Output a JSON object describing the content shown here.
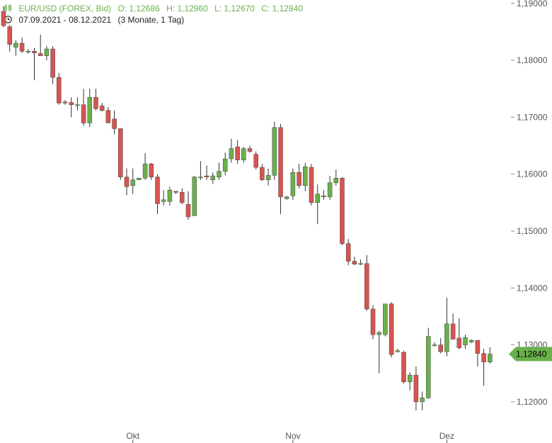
{
  "header": {
    "instrument": "EUR/USD (FOREX, Bid)",
    "open": "O: 1,12686",
    "high": "H: 1,12960",
    "low": "L: 1,12670",
    "close": "C: 1,12840",
    "daterange": "07.09.2021 - 08.12.2021",
    "period": "(3 Monate, 1 Tag)"
  },
  "colors": {
    "up": "#6ab04c",
    "down": "#d9534f",
    "wick": "#333333",
    "last": "#6ab04c"
  },
  "last_price_label": "1,12840",
  "chart_data": {
    "type": "candlestick",
    "title": "EUR/USD (FOREX, Bid)",
    "ylim": [
      1.1165,
      1.1906
    ],
    "yticks": [
      1.12,
      1.13,
      1.14,
      1.15,
      1.16,
      1.17,
      1.18,
      1.19
    ],
    "ytick_labels": [
      "1,12000",
      "1,13000",
      "1,14000",
      "1,15000",
      "1,16000",
      "1,17000",
      "1,18000",
      "1,19000"
    ],
    "xticks": [
      {
        "label": "Okt",
        "index": 21
      },
      {
        "label": "Nov",
        "index": 47
      },
      {
        "label": "Dez",
        "index": 72
      }
    ],
    "last": 1.1284,
    "candles": [
      [
        1.1886,
        1.1895,
        1.1858,
        1.1861
      ],
      [
        1.1859,
        1.1862,
        1.1815,
        1.1828
      ],
      [
        1.1823,
        1.1835,
        1.1808,
        1.183
      ],
      [
        1.183,
        1.184,
        1.1813,
        1.1816
      ],
      [
        1.1816,
        1.182,
        1.1812,
        1.1816
      ],
      [
        1.1816,
        1.1822,
        1.1765,
        1.1813
      ],
      [
        1.1812,
        1.1845,
        1.1808,
        1.1808
      ],
      [
        1.1808,
        1.1825,
        1.18,
        1.182
      ],
      [
        1.182,
        1.1825,
        1.1758,
        1.177
      ],
      [
        1.177,
        1.1778,
        1.1722,
        1.1725
      ],
      [
        1.1727,
        1.173,
        1.1722,
        1.1725
      ],
      [
        1.1726,
        1.1735,
        1.17,
        1.1722
      ],
      [
        1.1722,
        1.1735,
        1.1712,
        1.1722
      ],
      [
        1.1722,
        1.175,
        1.1685,
        1.169
      ],
      [
        1.169,
        1.175,
        1.1683,
        1.1735
      ],
      [
        1.1735,
        1.175,
        1.1712,
        1.1715
      ],
      [
        1.172,
        1.1725,
        1.171,
        1.1712
      ],
      [
        1.1712,
        1.1718,
        1.169,
        1.169
      ],
      [
        1.1697,
        1.1712,
        1.167,
        1.168
      ],
      [
        1.168,
        1.168,
        1.159,
        1.1595
      ],
      [
        1.1595,
        1.161,
        1.1563,
        1.1578
      ],
      [
        1.158,
        1.161,
        1.1565,
        1.159
      ],
      [
        1.159,
        1.1593,
        1.159,
        1.1593
      ],
      [
        1.1593,
        1.1637,
        1.159,
        1.1618
      ],
      [
        1.1618,
        1.162,
        1.159,
        1.1595
      ],
      [
        1.1595,
        1.16,
        1.153,
        1.1548
      ],
      [
        1.1552,
        1.1572,
        1.1545,
        1.1555
      ],
      [
        1.1552,
        1.1578,
        1.1545,
        1.1572
      ],
      [
        1.157,
        1.157,
        1.1565,
        1.1568
      ],
      [
        1.1568,
        1.1575,
        1.1547,
        1.155
      ],
      [
        1.1547,
        1.157,
        1.152,
        1.1525
      ],
      [
        1.1527,
        1.1597,
        1.1527,
        1.1595
      ],
      [
        1.1595,
        1.1623,
        1.159,
        1.1595
      ],
      [
        1.1597,
        1.1615,
        1.159,
        1.1595
      ],
      [
        1.159,
        1.1603,
        1.1583,
        1.1597
      ],
      [
        1.1595,
        1.162,
        1.159,
        1.1605
      ],
      [
        1.1605,
        1.1638,
        1.1598,
        1.1627
      ],
      [
        1.1627,
        1.1662,
        1.162,
        1.1645
      ],
      [
        1.1648,
        1.166,
        1.1618,
        1.1625
      ],
      [
        1.1625,
        1.1648,
        1.162,
        1.1645
      ],
      [
        1.1645,
        1.165,
        1.1638,
        1.164
      ],
      [
        1.1635,
        1.164,
        1.1608,
        1.1612
      ],
      [
        1.1612,
        1.1618,
        1.1588,
        1.159
      ],
      [
        1.159,
        1.161,
        1.158,
        1.1598
      ],
      [
        1.1598,
        1.1692,
        1.159,
        1.1682
      ],
      [
        1.1682,
        1.1688,
        1.153,
        1.156
      ],
      [
        1.1557,
        1.1562,
        1.1555,
        1.156
      ],
      [
        1.1562,
        1.161,
        1.1555,
        1.1603
      ],
      [
        1.1603,
        1.1618,
        1.1575,
        1.158
      ],
      [
        1.158,
        1.162,
        1.157,
        1.1613
      ],
      [
        1.1612,
        1.1618,
        1.1545,
        1.155
      ],
      [
        1.155,
        1.1582,
        1.1512,
        1.1565
      ],
      [
        1.156,
        1.1572,
        1.1555,
        1.1562
      ],
      [
        1.156,
        1.1597,
        1.1555,
        1.1585
      ],
      [
        1.1585,
        1.1608,
        1.158,
        1.1593
      ],
      [
        1.1593,
        1.1595,
        1.1475,
        1.1478
      ],
      [
        1.1478,
        1.1486,
        1.144,
        1.1447
      ],
      [
        1.1447,
        1.1455,
        1.144,
        1.1442
      ],
      [
        1.1442,
        1.145,
        1.144,
        1.1443
      ],
      [
        1.1443,
        1.1458,
        1.136,
        1.1363
      ],
      [
        1.1363,
        1.137,
        1.131,
        1.1318
      ],
      [
        1.1318,
        1.1325,
        1.125,
        1.1322
      ],
      [
        1.1318,
        1.1372,
        1.1315,
        1.1372
      ],
      [
        1.1372,
        1.1375,
        1.1278,
        1.1283
      ],
      [
        1.1288,
        1.1293,
        1.1287,
        1.129
      ],
      [
        1.1287,
        1.129,
        1.1232,
        1.1235
      ],
      [
        1.1235,
        1.1252,
        1.122,
        1.1247
      ],
      [
        1.1247,
        1.1262,
        1.1185,
        1.12
      ],
      [
        1.12,
        1.1218,
        1.1185,
        1.1207
      ],
      [
        1.1207,
        1.133,
        1.1205,
        1.1315
      ],
      [
        1.13,
        1.1305,
        1.1297,
        1.13
      ],
      [
        1.13,
        1.1312,
        1.1285,
        1.1288
      ],
      [
        1.1288,
        1.1383,
        1.128,
        1.1337
      ],
      [
        1.1337,
        1.1355,
        1.131,
        1.131
      ],
      [
        1.1312,
        1.1347,
        1.1292,
        1.1295
      ],
      [
        1.13,
        1.1318,
        1.1293,
        1.1313
      ],
      [
        1.1305,
        1.131,
        1.1303,
        1.1308
      ],
      [
        1.1308,
        1.1308,
        1.1262,
        1.1285
      ],
      [
        1.1285,
        1.1293,
        1.1228,
        1.127
      ],
      [
        1.127,
        1.1296,
        1.1267,
        1.1284
      ]
    ]
  }
}
